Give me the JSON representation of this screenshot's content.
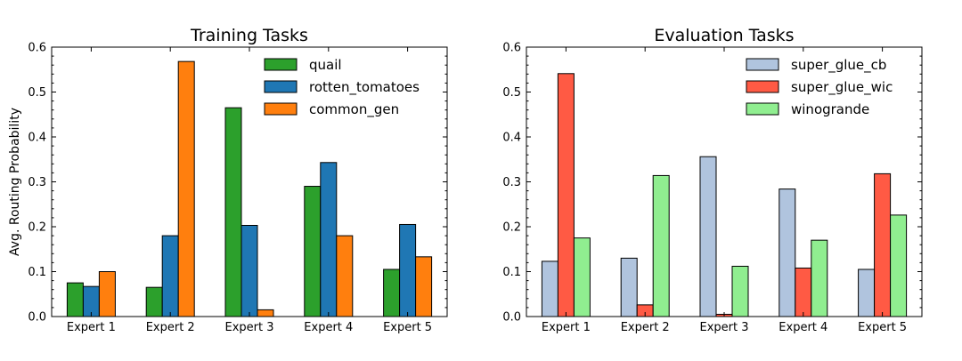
{
  "chart_data": [
    {
      "type": "bar",
      "title": "Training Tasks",
      "xlabel": "",
      "ylabel": "Avg. Routing Probability",
      "ylim": [
        0,
        0.6
      ],
      "yticks": [
        "0.0",
        "0.1",
        "0.2",
        "0.3",
        "0.4",
        "0.5",
        "0.6"
      ],
      "categories": [
        "Expert 1",
        "Expert 2",
        "Expert 3",
        "Expert 4",
        "Expert 5"
      ],
      "legend_position": "top-right",
      "series": [
        {
          "name": "quail",
          "color": "#2ca02c",
          "values": [
            0.075,
            0.065,
            0.465,
            0.29,
            0.105
          ]
        },
        {
          "name": "rotten_tomatoes",
          "color": "#1f77b4",
          "values": [
            0.067,
            0.18,
            0.203,
            0.343,
            0.205
          ]
        },
        {
          "name": "common_gen",
          "color": "#ff7f0e",
          "values": [
            0.1,
            0.568,
            0.015,
            0.18,
            0.133
          ]
        }
      ]
    },
    {
      "type": "bar",
      "title": "Evaluation Tasks",
      "xlabel": "",
      "ylabel": "",
      "ylim": [
        0,
        0.6
      ],
      "yticks": [
        "0.0",
        "0.1",
        "0.2",
        "0.3",
        "0.4",
        "0.5",
        "0.6"
      ],
      "categories": [
        "Expert 1",
        "Expert 2",
        "Expert 3",
        "Expert 4",
        "Expert 5"
      ],
      "legend_position": "top-right",
      "series": [
        {
          "name": "super_glue_cb",
          "color": "#b0c4de",
          "values": [
            0.123,
            0.13,
            0.356,
            0.284,
            0.105
          ]
        },
        {
          "name": "super_glue_wic",
          "color": "#ff5a44",
          "values": [
            0.541,
            0.026,
            0.005,
            0.108,
            0.318
          ]
        },
        {
          "name": "winogrande",
          "color": "#90ee90",
          "values": [
            0.175,
            0.314,
            0.112,
            0.17,
            0.226
          ]
        }
      ]
    }
  ]
}
